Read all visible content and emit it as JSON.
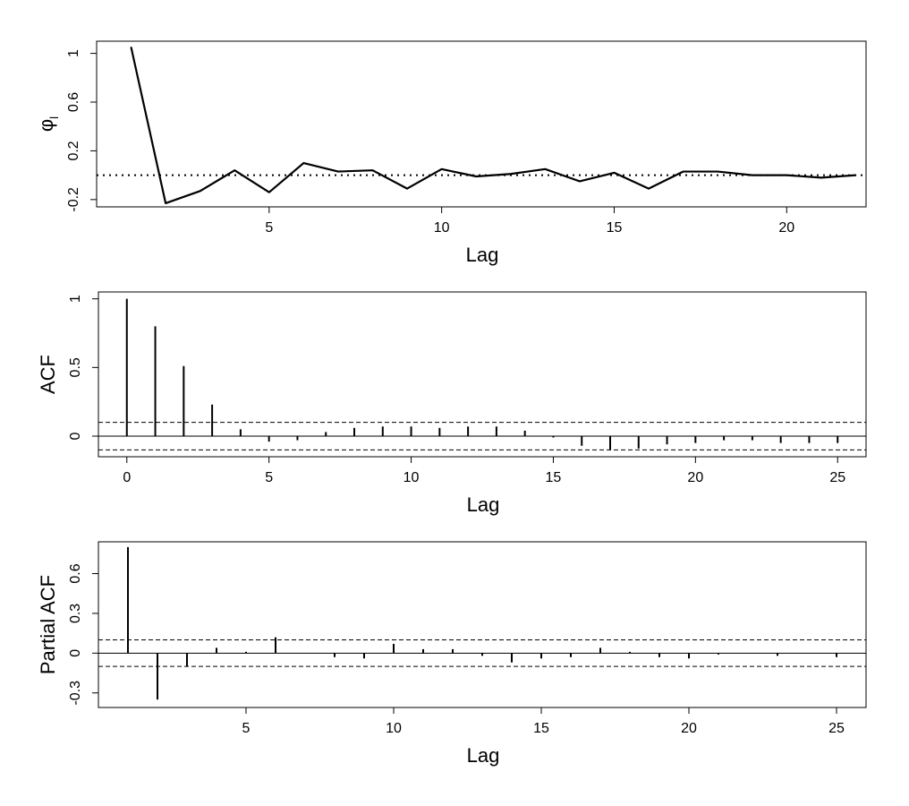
{
  "chart_data": [
    {
      "type": "line",
      "xlabel": "Lag",
      "ylabel": "φ",
      "ylabel_subscript": "l",
      "xlim": [
        0,
        22.3
      ],
      "ylim": [
        -0.26,
        1.1
      ],
      "x_ticks": [
        5,
        10,
        15,
        20
      ],
      "x_tick_labels": [
        "5",
        "10",
        "15",
        "20"
      ],
      "y_ticks": [
        -0.2,
        0.2,
        0.6,
        1
      ],
      "y_tick_labels": [
        "-0.2",
        "0.2",
        "0.6",
        "1"
      ],
      "reference_line": {
        "y": 0,
        "style": "dotted"
      },
      "x": [
        1,
        2,
        3,
        4,
        5,
        6,
        7,
        8,
        9,
        10,
        11,
        12,
        13,
        14,
        15,
        16,
        17,
        18,
        19,
        20,
        21,
        22
      ],
      "values": [
        1.05,
        -0.23,
        -0.13,
        0.04,
        -0.14,
        0.1,
        0.03,
        0.04,
        -0.11,
        0.05,
        -0.01,
        0.01,
        0.05,
        -0.05,
        0.02,
        -0.11,
        0.03,
        0.03,
        0.0,
        0.0,
        -0.02,
        0.0
      ]
    },
    {
      "type": "bar",
      "style": "stem",
      "xlabel": "Lag",
      "ylabel": "ACF",
      "xlim": [
        -1,
        26
      ],
      "ylim": [
        -0.15,
        1.05
      ],
      "x_ticks": [
        0,
        5,
        10,
        15,
        20,
        25
      ],
      "x_tick_labels": [
        "0",
        "5",
        "10",
        "15",
        "20",
        "25"
      ],
      "y_ticks": [
        0,
        0.5,
        1
      ],
      "y_tick_labels": [
        "0",
        "0.5",
        "1"
      ],
      "confidence_band": [
        -0.1,
        0.1
      ],
      "zero_line": true,
      "x": [
        0,
        1,
        2,
        3,
        4,
        5,
        6,
        7,
        8,
        9,
        10,
        11,
        12,
        13,
        14,
        15,
        16,
        17,
        18,
        19,
        20,
        21,
        22,
        23,
        24,
        25
      ],
      "values": [
        1.0,
        0.8,
        0.51,
        0.23,
        0.05,
        -0.04,
        -0.03,
        0.03,
        0.06,
        0.07,
        0.07,
        0.06,
        0.07,
        0.07,
        0.04,
        -0.01,
        -0.07,
        -0.1,
        -0.09,
        -0.06,
        -0.05,
        -0.03,
        -0.03,
        -0.05,
        -0.05,
        -0.05
      ]
    },
    {
      "type": "bar",
      "style": "stem",
      "xlabel": "Lag",
      "ylabel": "Partial ACF",
      "xlim": [
        0,
        26
      ],
      "ylim": [
        -0.41,
        0.84
      ],
      "x_ticks": [
        5,
        10,
        15,
        20,
        25
      ],
      "x_tick_labels": [
        "5",
        "10",
        "15",
        "20",
        "25"
      ],
      "y_ticks": [
        -0.3,
        0,
        0.3,
        0.6
      ],
      "y_tick_labels": [
        "-0.3",
        "0",
        "0.3",
        "0.6"
      ],
      "confidence_band": [
        -0.1,
        0.1
      ],
      "zero_line": true,
      "x": [
        1,
        2,
        3,
        4,
        5,
        6,
        7,
        8,
        9,
        10,
        11,
        12,
        13,
        14,
        15,
        16,
        17,
        18,
        19,
        20,
        21,
        22,
        23,
        24,
        25
      ],
      "values": [
        0.8,
        -0.35,
        -0.1,
        0.04,
        0.01,
        0.12,
        0.0,
        -0.03,
        -0.04,
        0.07,
        0.03,
        0.03,
        -0.02,
        -0.07,
        -0.04,
        -0.03,
        0.04,
        0.01,
        -0.03,
        -0.04,
        -0.01,
        0.0,
        -0.02,
        0.0,
        -0.03
      ]
    }
  ]
}
